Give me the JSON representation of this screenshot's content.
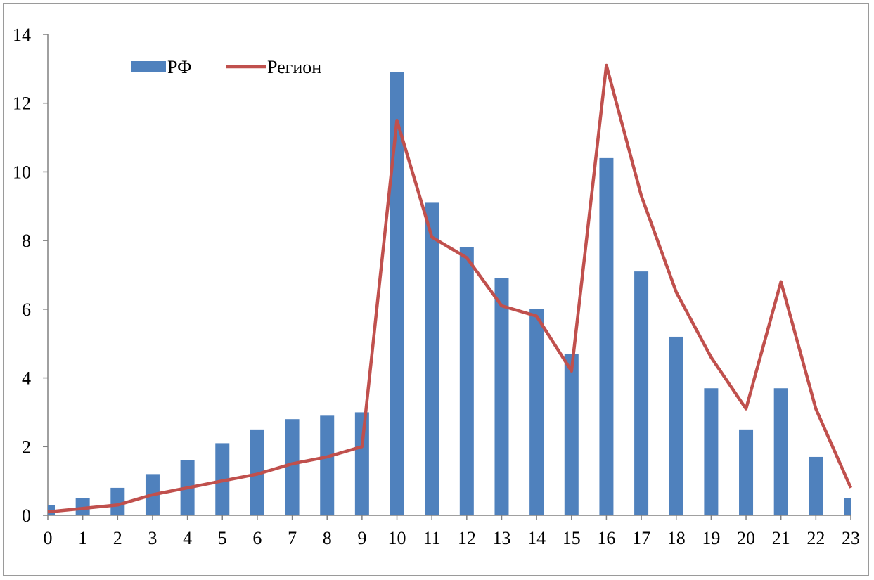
{
  "chart_data": {
    "type": "bar",
    "categories": [
      "0",
      "1",
      "2",
      "3",
      "4",
      "5",
      "6",
      "7",
      "8",
      "9",
      "10",
      "11",
      "12",
      "13",
      "14",
      "15",
      "16",
      "17",
      "18",
      "19",
      "20",
      "21",
      "22",
      "23"
    ],
    "series": [
      {
        "name": "РФ",
        "kind": "bar",
        "color": "#4f81bd",
        "values": [
          0.3,
          0.5,
          0.8,
          1.2,
          1.6,
          2.1,
          2.5,
          2.8,
          2.9,
          3.0,
          12.9,
          9.1,
          7.8,
          6.9,
          6.0,
          4.7,
          10.4,
          7.1,
          5.2,
          3.7,
          2.5,
          3.7,
          1.7,
          0.5
        ]
      },
      {
        "name": "Регион",
        "kind": "line",
        "color": "#c0504d",
        "values": [
          0.1,
          0.2,
          0.3,
          0.6,
          0.8,
          1.0,
          1.2,
          1.5,
          1.7,
          2.0,
          11.5,
          8.1,
          7.5,
          6.1,
          5.8,
          4.2,
          13.1,
          9.3,
          6.5,
          4.6,
          3.1,
          6.8,
          3.1,
          0.8
        ]
      }
    ],
    "ylim": [
      0,
      14
    ],
    "yticks": [
      "0",
      "2",
      "4",
      "6",
      "8",
      "10",
      "12",
      "14"
    ],
    "grid": false,
    "legend_position": "top-left",
    "title": "",
    "xlabel": "",
    "ylabel": ""
  }
}
